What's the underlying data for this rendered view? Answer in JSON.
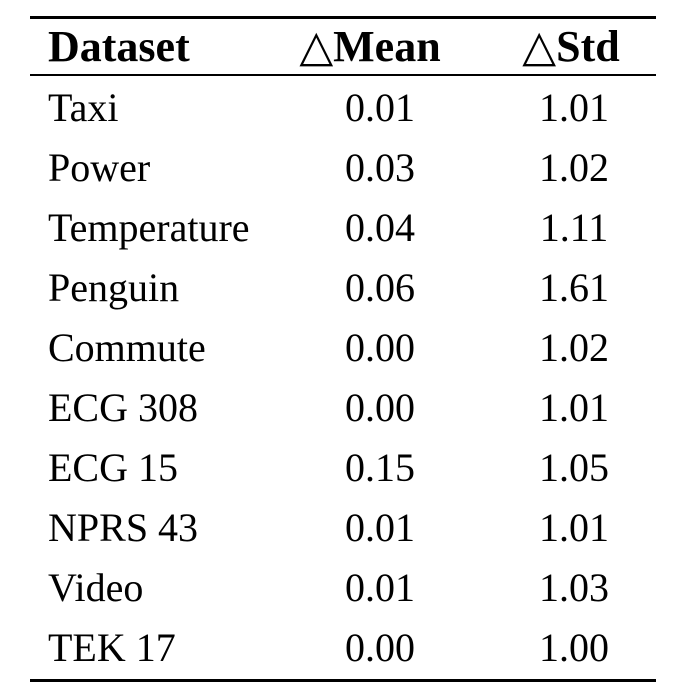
{
  "table": {
    "headers": {
      "dataset": "Dataset",
      "mean_symbol": "△",
      "mean": "Mean",
      "std_symbol": "△",
      "std": "Std"
    },
    "rows": [
      {
        "dataset": "Taxi",
        "mean": "0.01",
        "std": "1.01"
      },
      {
        "dataset": "Power",
        "mean": "0.03",
        "std": "1.02"
      },
      {
        "dataset": "Temperature",
        "mean": "0.04",
        "std": "1.11"
      },
      {
        "dataset": "Penguin",
        "mean": "0.06",
        "std": "1.61"
      },
      {
        "dataset": "Commute",
        "mean": "0.00",
        "std": "1.02"
      },
      {
        "dataset": "ECG 308",
        "mean": "0.00",
        "std": "1.01"
      },
      {
        "dataset": "ECG 15",
        "mean": "0.15",
        "std": "1.05"
      },
      {
        "dataset": "NPRS 43",
        "mean": "0.01",
        "std": "1.01"
      },
      {
        "dataset": "Video",
        "mean": "0.01",
        "std": "1.03"
      },
      {
        "dataset": "TEK 17",
        "mean": "0.00",
        "std": "1.00"
      }
    ]
  }
}
